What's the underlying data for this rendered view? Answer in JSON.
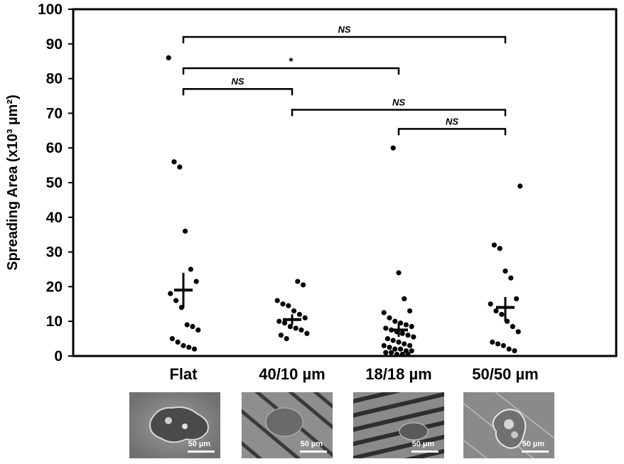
{
  "chart_data": {
    "type": "scatter",
    "ylabel": "Spreading Area (x10³ µm²)",
    "ylim": [
      0,
      100
    ],
    "yticks": [
      0,
      10,
      20,
      30,
      40,
      50,
      60,
      70,
      80,
      90,
      100
    ],
    "categories": [
      "Flat",
      "40/10 µm",
      "18/18 µm",
      "50/50 µm"
    ],
    "series": [
      {
        "category": "Flat",
        "points": [
          86,
          56,
          54.5,
          36,
          25,
          21.5,
          18,
          16,
          14,
          9,
          8.5,
          7.5,
          5,
          4,
          3,
          2.5,
          2
        ],
        "mean": 19,
        "error": [
          14,
          24
        ]
      },
      {
        "category": "40/10 µm",
        "points": [
          21.5,
          20.5,
          16,
          15,
          14.5,
          13,
          12,
          11,
          10,
          9.5,
          8.5,
          8,
          7.5,
          6.5,
          6,
          5
        ],
        "mean": 10.5,
        "error": [
          9,
          12
        ]
      },
      {
        "category": "18/18 µm",
        "points": [
          60,
          24,
          16.5,
          13,
          12.5,
          11,
          10,
          9.5,
          9,
          8.5,
          8,
          7.5,
          7,
          6.5,
          6,
          5.5,
          5,
          4.5,
          4,
          3.5,
          3,
          3,
          2.5,
          2,
          2,
          1.5,
          1.5,
          1,
          1,
          0.5,
          0.5,
          0.5
        ],
        "mean": 7.5,
        "error": [
          5.5,
          9.5
        ]
      },
      {
        "category": "50/50 µm",
        "points": [
          49,
          32,
          31,
          24.5,
          22.5,
          16.5,
          15,
          13,
          12,
          10,
          8.5,
          7,
          4,
          3.5,
          3,
          2,
          1.5
        ],
        "mean": 14,
        "error": [
          10,
          17
        ]
      }
    ],
    "significance": [
      {
        "from": 0,
        "to": 3,
        "y": 92,
        "label": "NS"
      },
      {
        "from": 0,
        "to": 2,
        "y": 83,
        "label": "*"
      },
      {
        "from": 0,
        "to": 1,
        "y": 77,
        "label": "NS"
      },
      {
        "from": 1,
        "to": 3,
        "y": 71,
        "label": "NS"
      },
      {
        "from": 2,
        "to": 3,
        "y": 65.5,
        "label": "NS"
      }
    ]
  },
  "images": [
    {
      "category": "Flat",
      "scale_label": "50 µm"
    },
    {
      "category": "40/10 µm",
      "scale_label": "50 µm"
    },
    {
      "category": "18/18 µm",
      "scale_label": "50 µm"
    },
    {
      "category": "50/50 µm",
      "scale_label": "50 µm"
    }
  ]
}
